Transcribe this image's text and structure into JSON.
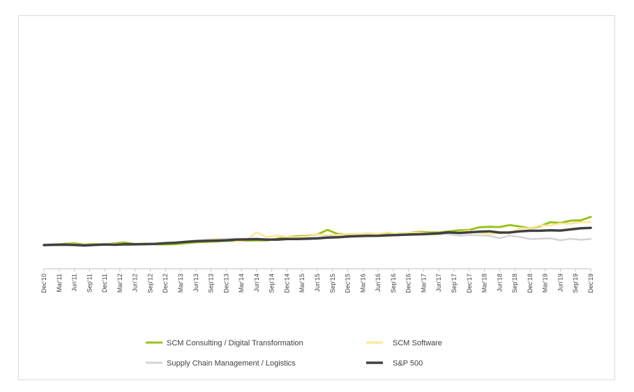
{
  "chart_data": {
    "type": "line",
    "title": "",
    "xlabel": "",
    "ylabel": "",
    "x_ticks": [
      "Dec'10",
      "Mar'11",
      "Jun'11",
      "Sep'11",
      "Dec'11",
      "Mar'12",
      "Jun'12",
      "Sep'12",
      "Dec'12",
      "Mar'13",
      "Jun'13",
      "Sep'13",
      "Dec'13",
      "Mar'14",
      "Jun'14",
      "Sep'14",
      "Dec'14",
      "Mar'15",
      "Jun'15",
      "Sep'15",
      "Dec'15",
      "Mar'16",
      "Jun'16",
      "Sep'16",
      "Dec'16",
      "Mar'17",
      "Jun'17",
      "Sep'17",
      "Dec'17",
      "Mar'18",
      "Jun'18",
      "Sep'18",
      "Dec'18",
      "Mar'19",
      "Jun'19",
      "Sep'19",
      "Dec'19"
    ],
    "grid": false,
    "legend_position": "bottom",
    "series": [
      {
        "name": "SCM Consulting / Digital Transformation",
        "color": "#99c31c",
        "width": 3,
        "x": [
          0,
          2,
          4,
          6,
          8,
          10,
          12,
          14,
          16,
          18,
          20,
          22,
          24,
          26,
          28,
          30,
          32,
          34,
          36,
          38,
          40,
          42,
          44,
          46,
          48,
          50,
          52,
          54,
          56,
          58,
          60,
          62,
          64,
          66,
          68,
          70,
          72,
          74,
          76,
          78,
          80,
          82,
          84,
          86,
          88,
          90,
          92,
          94,
          96,
          98,
          100,
          102,
          104,
          106,
          108
        ],
        "y": [
          100,
          103,
          112,
          117,
          104,
          110,
          106,
          118,
          124,
          110,
          114,
          108,
          106,
          109,
          118,
          126,
          130,
          135,
          140,
          140,
          143,
          145,
          144,
          160,
          175,
          184,
          186,
          200,
          244,
          205,
          199,
          196,
          208,
          204,
          208,
          205,
          213,
          225,
          220,
          218,
          230,
          240,
          243,
          268,
          272,
          270,
          289,
          275,
          258,
          278,
          316,
          309,
          330,
          334,
          366
        ]
      },
      {
        "name": "SCM Software",
        "color": "#ffe59a",
        "width": 2.5,
        "x": [
          0,
          2,
          4,
          6,
          8,
          10,
          12,
          14,
          16,
          18,
          20,
          22,
          24,
          26,
          28,
          30,
          32,
          34,
          36,
          38,
          40,
          42,
          44,
          46,
          48,
          50,
          52,
          54,
          56,
          58,
          60,
          62,
          64,
          66,
          68,
          70,
          72,
          74,
          76,
          78,
          80,
          82,
          84,
          86,
          88,
          90,
          92,
          94,
          96,
          98,
          100,
          102,
          104,
          106,
          108
        ],
        "y": [
          100,
          103,
          107,
          109,
          101,
          108,
          110,
          113,
          112,
          112,
          114,
          115,
          118,
          122,
          130,
          137,
          150,
          160,
          158,
          138,
          148,
          220,
          174,
          190,
          177,
          176,
          181,
          202,
          194,
          197,
          205,
          205,
          212,
          205,
          219,
          204,
          214,
          220,
          208,
          196,
          214,
          222,
          235,
          215,
          207,
          211,
          210,
          260,
          258,
          285,
          285,
          304,
          301,
          316,
          317
        ]
      },
      {
        "name": "Supply Chain Management / Logistics",
        "color": "#d4d4d4",
        "width": 2.5,
        "x": [
          0,
          2,
          4,
          6,
          8,
          10,
          12,
          14,
          16,
          18,
          20,
          22,
          24,
          26,
          28,
          30,
          32,
          34,
          36,
          38,
          40,
          42,
          44,
          46,
          48,
          50,
          52,
          54,
          56,
          58,
          60,
          62,
          64,
          66,
          68,
          70,
          72,
          74,
          76,
          78,
          80,
          82,
          84,
          86,
          88,
          90,
          92,
          94,
          96,
          98,
          100,
          102,
          104,
          106,
          108
        ],
        "y": [
          100,
          96,
          101,
          97,
          92,
          98,
          103,
          100,
          97,
          104,
          106,
          114,
          118,
          122,
          133,
          141,
          148,
          152,
          160,
          161,
          160,
          163,
          156,
          148,
          153,
          155,
          168,
          170,
          185,
          179,
          183,
          186,
          195,
          190,
          196,
          196,
          195,
          203,
          203,
          205,
          203,
          187,
          196,
          192,
          188,
          165,
          189,
          176,
          157,
          160,
          163,
          145,
          160,
          150,
          157
        ]
      },
      {
        "name": "S&P 500",
        "color": "#404040",
        "width": 3.5,
        "x": [
          0,
          2,
          4,
          6,
          8,
          10,
          12,
          14,
          16,
          18,
          20,
          22,
          24,
          26,
          28,
          30,
          32,
          34,
          36,
          38,
          40,
          42,
          44,
          46,
          48,
          50,
          52,
          54,
          56,
          58,
          60,
          62,
          64,
          66,
          68,
          70,
          72,
          74,
          76,
          78,
          80,
          82,
          84,
          86,
          88,
          90,
          92,
          94,
          96,
          98,
          100,
          102,
          104,
          106,
          108
        ],
        "y": [
          100,
          103,
          104,
          102,
          97,
          102,
          106,
          103,
          108,
          107,
          109,
          111,
          118,
          122,
          130,
          137,
          140,
          142,
          145,
          152,
          153,
          156,
          152,
          152,
          157,
          158,
          160,
          163,
          171,
          174,
          180,
          185,
          187,
          188,
          192,
          195,
          199,
          202,
          205,
          211,
          220,
          214,
          221,
          227,
          230,
          218,
          219,
          230,
          235,
          235,
          240,
          237,
          248,
          258,
          263
        ]
      }
    ]
  },
  "legend": {
    "items": [
      {
        "label": "SCM Consulting / Digital Transformation",
        "color": "#99c31c"
      },
      {
        "label": "SCM Software",
        "color": "#ffe59a"
      },
      {
        "label": "Supply Chain Management / Logistics",
        "color": "#d4d4d4"
      },
      {
        "label": "S&P 500",
        "color": "#404040"
      }
    ]
  }
}
